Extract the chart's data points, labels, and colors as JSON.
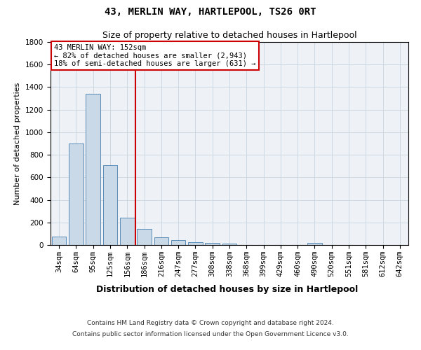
{
  "title": "43, MERLIN WAY, HARTLEPOOL, TS26 0RT",
  "subtitle": "Size of property relative to detached houses in Hartlepool",
  "xlabel": "Distribution of detached houses by size in Hartlepool",
  "ylabel": "Number of detached properties",
  "categories": [
    "34sqm",
    "64sqm",
    "95sqm",
    "125sqm",
    "156sqm",
    "186sqm",
    "216sqm",
    "247sqm",
    "277sqm",
    "308sqm",
    "338sqm",
    "368sqm",
    "399sqm",
    "429sqm",
    "460sqm",
    "490sqm",
    "520sqm",
    "551sqm",
    "581sqm",
    "612sqm",
    "642sqm"
  ],
  "values": [
    75,
    900,
    1340,
    710,
    240,
    140,
    70,
    45,
    25,
    20,
    15,
    0,
    0,
    0,
    0,
    20,
    0,
    0,
    0,
    0,
    0
  ],
  "bar_color": "#c9d9e8",
  "bar_edge_color": "#5b8db8",
  "vline_x": 4.5,
  "vline_color": "#cc0000",
  "annotation_box_text": "43 MERLIN WAY: 152sqm\n← 82% of detached houses are smaller (2,943)\n18% of semi-detached houses are larger (631) →",
  "annotation_box_color": "#cc0000",
  "annotation_box_bg": "#ffffff",
  "ylim": [
    0,
    1800
  ],
  "yticks": [
    0,
    200,
    400,
    600,
    800,
    1000,
    1200,
    1400,
    1600,
    1800
  ],
  "grid_color": "#c8d4e0",
  "footer_line1": "Contains HM Land Registry data © Crown copyright and database right 2024.",
  "footer_line2": "Contains public sector information licensed under the Open Government Licence v3.0.",
  "bg_color": "#eef2f7",
  "title_fontsize": 10,
  "subtitle_fontsize": 9,
  "xlabel_fontsize": 9,
  "ylabel_fontsize": 8,
  "tick_fontsize": 7.5,
  "footer_fontsize": 6.5
}
